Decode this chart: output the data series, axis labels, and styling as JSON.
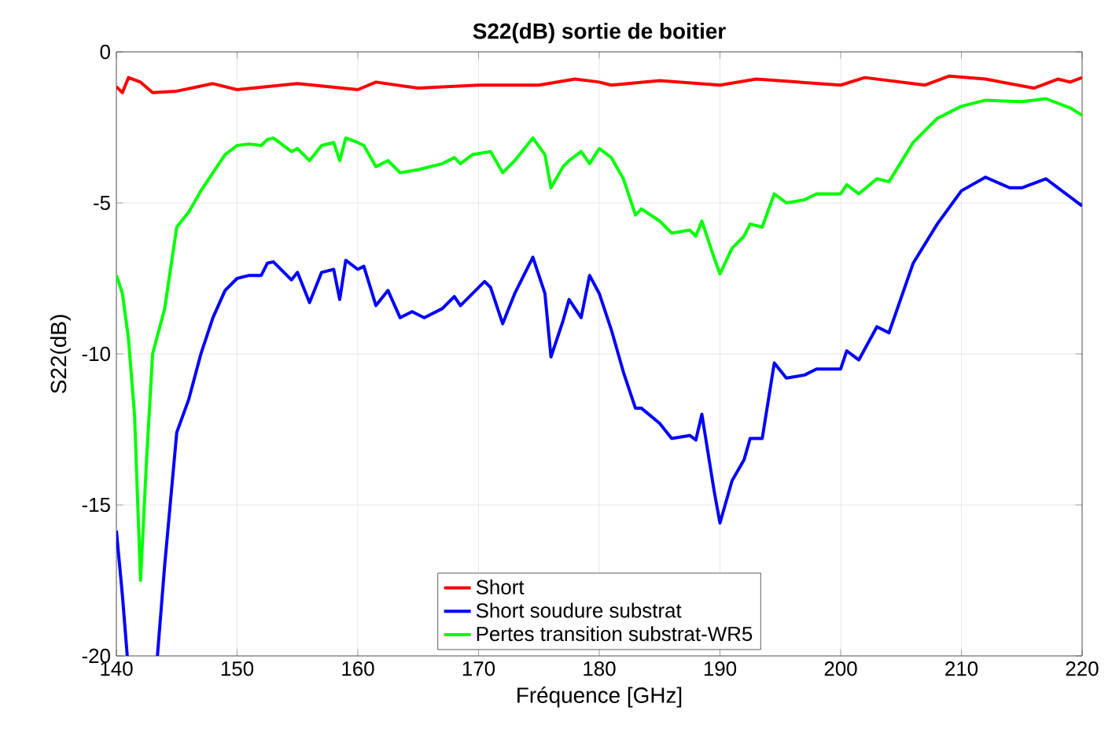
{
  "chart_data": {
    "type": "line",
    "title": "S22(dB) sortie de boitier",
    "xlabel": "Fréquence [GHz]",
    "ylabel": "S22(dB)",
    "xlim": [
      140,
      220
    ],
    "ylim": [
      -20,
      0
    ],
    "xticks": [
      140,
      150,
      160,
      170,
      180,
      190,
      200,
      210,
      220
    ],
    "yticks": [
      -20,
      -15,
      -10,
      -5,
      0
    ],
    "grid": true,
    "legend": "bottom",
    "line_style": "solid",
    "marker": "none",
    "series": [
      {
        "name": "Short",
        "color": "#ff0000",
        "x": [
          140,
          140.5,
          141,
          142,
          143,
          145,
          148,
          150,
          155,
          160,
          161.5,
          165,
          170,
          175,
          178,
          180,
          181,
          185,
          190,
          193,
          200,
          202,
          207,
          209,
          212,
          216,
          218,
          219,
          220
        ],
        "values": [
          -1.15,
          -1.35,
          -0.85,
          -1.0,
          -1.35,
          -1.3,
          -1.05,
          -1.25,
          -1.05,
          -1.25,
          -1.0,
          -1.2,
          -1.1,
          -1.1,
          -0.9,
          -1.0,
          -1.1,
          -0.95,
          -1.1,
          -0.9,
          -1.1,
          -0.85,
          -1.1,
          -0.8,
          -0.9,
          -1.2,
          -0.9,
          -1.0,
          -0.85
        ]
      },
      {
        "name": "Short soudure substrat",
        "color": "#0000ff",
        "x": [
          140,
          140.5,
          140.9,
          142,
          143.4,
          144,
          145,
          146,
          147,
          148,
          149,
          150,
          151,
          152,
          152.5,
          153,
          154.5,
          155,
          156,
          157,
          158,
          158.5,
          159,
          160,
          160.5,
          161.5,
          162.5,
          163.5,
          164.5,
          165.5,
          167,
          168,
          168.5,
          169.5,
          170.5,
          171,
          172,
          173,
          174.5,
          175.5,
          176,
          177,
          177.5,
          178.5,
          179.2,
          180,
          181,
          182,
          183,
          183.5,
          185,
          186,
          187.5,
          188,
          188.5,
          189.5,
          190,
          191,
          192,
          192.5,
          193.5,
          194.5,
          195.5,
          197,
          198,
          200,
          200.5,
          201.5,
          203,
          204,
          206,
          208,
          210,
          212,
          214,
          215,
          217,
          218,
          220
        ],
        "values": [
          -15.85,
          -18,
          -20,
          null,
          -20,
          -17,
          -12.6,
          -11.5,
          -10.0,
          -8.8,
          -7.9,
          -7.5,
          -7.4,
          -7.4,
          -7.0,
          -6.95,
          -7.55,
          -7.3,
          -8.3,
          -7.3,
          -7.2,
          -8.2,
          -6.9,
          -7.2,
          -7.1,
          -8.4,
          -7.9,
          -8.8,
          -8.6,
          -8.8,
          -8.5,
          -8.1,
          -8.4,
          -8.0,
          -7.6,
          -7.8,
          -9.0,
          -8.0,
          -6.8,
          -8.0,
          -10.1,
          -8.9,
          -8.2,
          -8.8,
          -7.4,
          -8.0,
          -9.2,
          -10.6,
          -11.8,
          -11.8,
          -12.3,
          -12.8,
          -12.7,
          -12.85,
          -12.0,
          -14.5,
          -15.6,
          -14.2,
          -13.5,
          -12.8,
          -12.8,
          -10.3,
          -10.8,
          -10.7,
          -10.5,
          -10.5,
          -9.9,
          -10.2,
          -9.1,
          -9.3,
          -7.0,
          -5.7,
          -4.6,
          -4.15,
          -4.5,
          -4.5,
          -4.2,
          -4.5,
          -5.1
        ]
      },
      {
        "name": "Pertes transition substrat-WR5",
        "color": "#00ff00",
        "x": [
          140,
          140.5,
          141,
          141.5,
          142,
          142.5,
          143,
          144,
          145,
          146,
          147,
          148,
          149,
          150,
          151,
          152,
          152.5,
          153,
          154.5,
          155,
          156,
          157,
          158,
          158.5,
          159,
          160,
          160.5,
          161.5,
          162.5,
          163.5,
          165,
          167,
          168,
          168.5,
          169.5,
          171,
          172,
          173,
          174.5,
          175.5,
          176,
          177,
          177.5,
          178.5,
          179.2,
          180,
          181,
          182,
          183,
          183.5,
          185,
          186,
          187.5,
          188,
          188.5,
          189.5,
          190,
          191,
          192,
          192.5,
          193.5,
          194.5,
          195.5,
          197,
          198,
          200,
          200.5,
          201.5,
          203,
          204,
          206,
          208,
          210,
          212,
          215,
          217,
          219,
          220
        ],
        "values": [
          -7.4,
          -8,
          -9.5,
          -12,
          -17.5,
          -13.5,
          -10,
          -8.5,
          -5.8,
          -5.3,
          -4.6,
          -4.0,
          -3.4,
          -3.1,
          -3.05,
          -3.1,
          -2.9,
          -2.85,
          -3.3,
          -3.2,
          -3.6,
          -3.1,
          -3.0,
          -3.6,
          -2.85,
          -3.0,
          -3.1,
          -3.8,
          -3.6,
          -4.0,
          -3.9,
          -3.7,
          -3.5,
          -3.7,
          -3.4,
          -3.3,
          -4.0,
          -3.6,
          -2.85,
          -3.4,
          -4.5,
          -3.8,
          -3.6,
          -3.3,
          -3.7,
          -3.2,
          -3.5,
          -4.2,
          -5.4,
          -5.2,
          -5.6,
          -6.0,
          -5.9,
          -6.1,
          -5.6,
          -6.8,
          -7.35,
          -6.5,
          -6.1,
          -5.7,
          -5.8,
          -4.7,
          -5.0,
          -4.9,
          -4.7,
          -4.7,
          -4.4,
          -4.7,
          -4.2,
          -4.3,
          -3.0,
          -2.2,
          -1.8,
          -1.6,
          -1.65,
          -1.55,
          -1.85,
          -2.1
        ]
      }
    ]
  }
}
